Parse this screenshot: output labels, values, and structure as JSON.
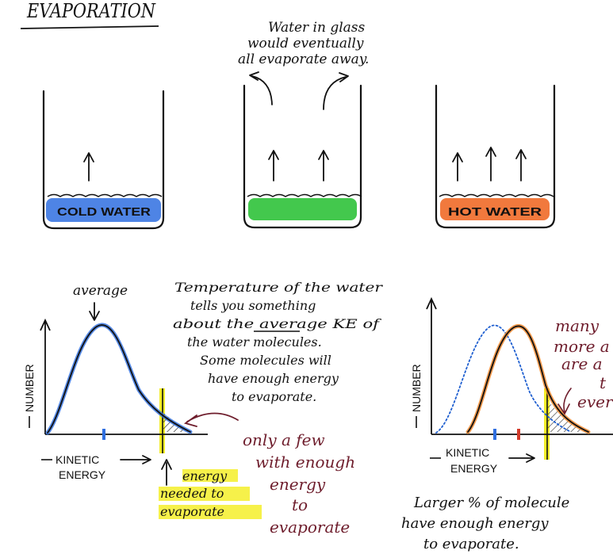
{
  "title": "EVAPORATION",
  "glasses": {
    "cold": {
      "label": "COLD WATER",
      "color": "#2f6fe0"
    },
    "middle": {
      "color": "#2fc23a"
    },
    "hot": {
      "label": "HOT WATER",
      "color": "#f06a28"
    }
  },
  "glass_note": [
    "Water in glass",
    "would eventually",
    "all evaporate away."
  ],
  "left_graph": {
    "peak_label": "average",
    "y_axis_label": "NUMBER",
    "x_axis_label": [
      "KINETIC",
      "ENERGY"
    ],
    "threshold_label": [
      "energy",
      "needed to",
      "evaporate"
    ],
    "few_note": [
      "only a few",
      "with enough",
      "energy",
      "to",
      "evaporate"
    ]
  },
  "temperature_note": [
    "Temperature of the water",
    "tells you something",
    "about the average KE of",
    "the water molecules.",
    "Some molecules will",
    "have enough energy",
    "to evaporate."
  ],
  "right_graph": {
    "y_axis_label": "NUMBER",
    "x_axis_label": [
      "KINETIC",
      "ENERGY"
    ],
    "many_note": [
      "many",
      "more a",
      "are a",
      "t",
      "ever"
    ],
    "bottom_note": [
      "Larger % of molecule",
      "have enough energy",
      "to evaporate."
    ]
  },
  "colors": {
    "cold_water": "#2f6fe0",
    "green_water": "#2fc23a",
    "hot_water": "#f06a28",
    "threshold_marker": "#f5ef2a",
    "note_ink": "#6e1d2c",
    "hot_curve": "#f08a30",
    "cold_curve_dotted": "#1f5fd0",
    "avg_marker_cold": "#2f6fe0",
    "avg_marker_hot": "#d23a2a"
  }
}
